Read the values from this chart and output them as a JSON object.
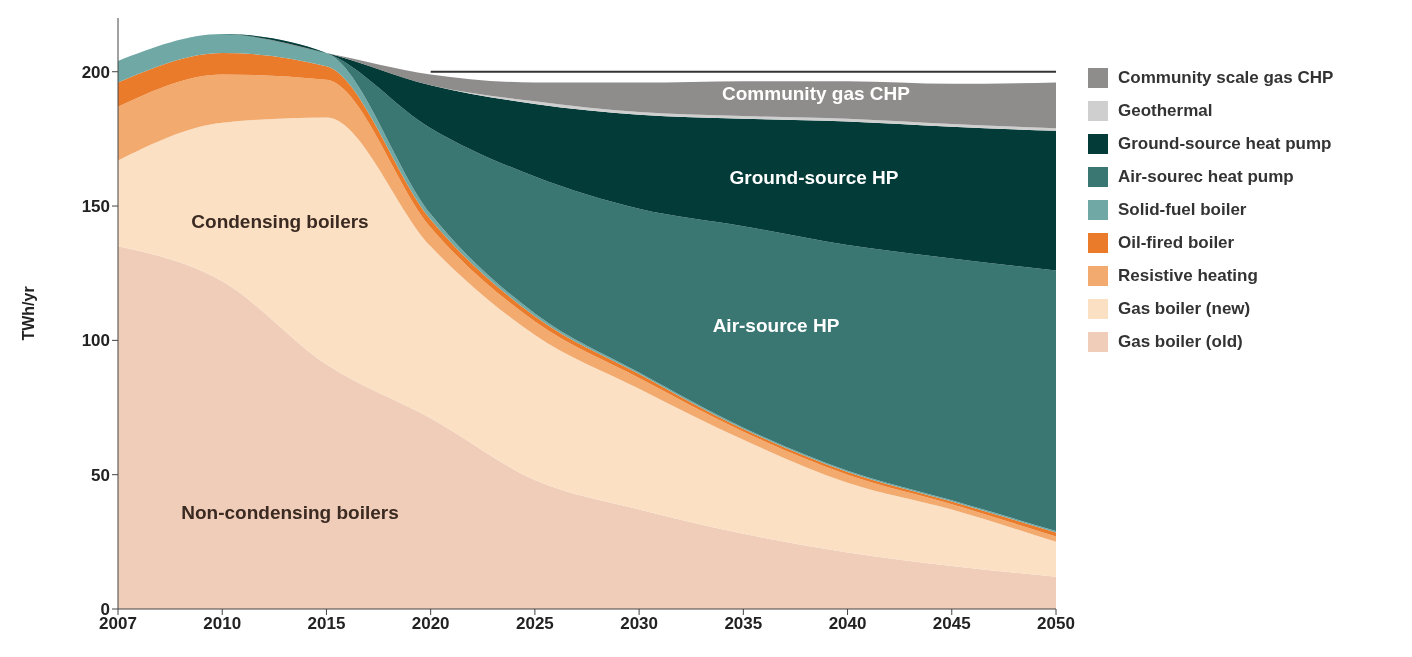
{
  "chart_data": {
    "type": "area",
    "stacked": true,
    "ylabel": "TWh/yr",
    "categories": [
      "2007",
      "2010",
      "2015",
      "2020",
      "2025",
      "2030",
      "2035",
      "2040",
      "2045",
      "2050"
    ],
    "ylim": [
      0,
      220
    ],
    "yticks": [
      0,
      50,
      100,
      150,
      200
    ],
    "legend": "right",
    "series": [
      {
        "name": "Gas boiler (old)",
        "color": "#efcdb8",
        "values": [
          135,
          122,
          91,
          71,
          48,
          37,
          28,
          21,
          16,
          12
        ]
      },
      {
        "name": "Gas boiler (new)",
        "color": "#fbe0c4",
        "values": [
          32,
          59,
          92,
          64,
          54,
          45,
          35,
          26,
          21,
          13
        ]
      },
      {
        "name": "Resistive heating",
        "color": "#f2aa6e",
        "values": [
          20,
          18,
          14,
          7,
          5,
          4,
          3,
          3,
          2,
          2
        ]
      },
      {
        "name": "Oil-fired boiler",
        "color": "#ea7b2a",
        "values": [
          9,
          8,
          5,
          3,
          2,
          1.5,
          1,
          1,
          1,
          1.5
        ]
      },
      {
        "name": "Solid-fuel boiler",
        "color": "#6fa8a5",
        "values": [
          8,
          7,
          5,
          2,
          1,
          0.5,
          0.5,
          0.5,
          0.5,
          0.5
        ]
      },
      {
        "name": "Air-sourec heat pump",
        "color": "#3a7773",
        "values": [
          0,
          0,
          0,
          32,
          51,
          61,
          75,
          84,
          90,
          97
        ]
      },
      {
        "name": "Ground-source heat pump",
        "color": "#023b37",
        "values": [
          0,
          0,
          0,
          16,
          27,
          35,
          40,
          46,
          49,
          52
        ]
      },
      {
        "name": "Geothermal",
        "color": "#cfcfcf",
        "values": [
          0,
          0,
          0,
          0,
          1,
          1,
          1,
          1,
          1,
          1
        ]
      },
      {
        "name": "Community scale gas CHP",
        "color": "#8f8c8c",
        "values": [
          0,
          0,
          0,
          4,
          7,
          11,
          13,
          14,
          15,
          17
        ]
      },
      {
        "type": "line",
        "color": "#333333",
        "values": [
          null,
          null,
          null,
          200,
          200,
          200,
          200,
          200,
          200,
          200
        ]
      }
    ],
    "annotations": [
      "Non-condensing boilers",
      "Condensing boilers",
      "Air-source HP",
      "Ground-source HP",
      "Community gas CHP"
    ]
  }
}
